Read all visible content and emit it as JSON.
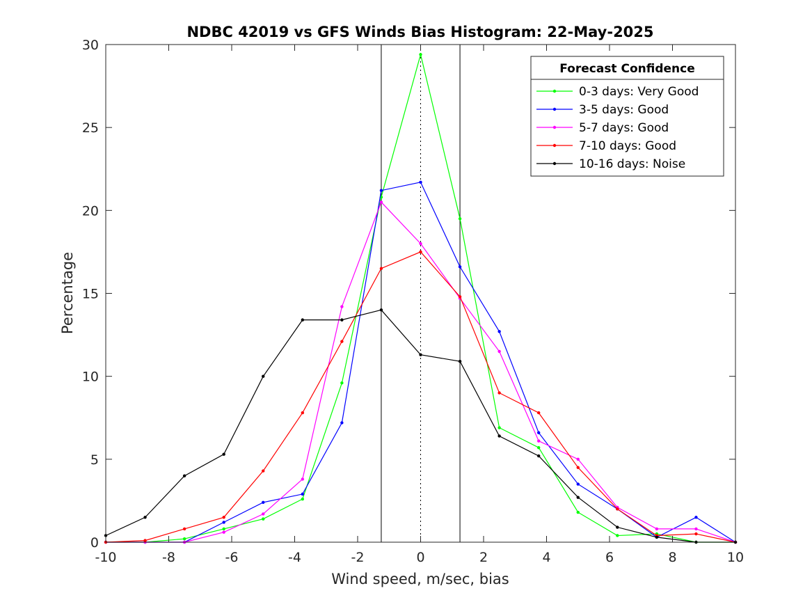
{
  "chart_data": {
    "type": "line",
    "title": "NDBC 42019 vs GFS Winds Bias Histogram: 22-May-2025",
    "xlabel": "Wind speed, m/sec, bias",
    "ylabel": "Percentage",
    "xlim": [
      -10,
      10
    ],
    "ylim": [
      0,
      30
    ],
    "xticks": [
      -10,
      -8,
      -6,
      -4,
      -2,
      0,
      2,
      4,
      6,
      8,
      10
    ],
    "yticks": [
      0,
      5,
      10,
      15,
      20,
      25,
      30
    ],
    "grid": false,
    "reference_lines": [
      {
        "x": -1.25,
        "style": "solid"
      },
      {
        "x": 0,
        "style": "dotted"
      },
      {
        "x": 1.25,
        "style": "solid"
      }
    ],
    "legend": {
      "title": "Forecast Confidence",
      "position": "top-right"
    },
    "x": [
      -10,
      -8.75,
      -7.5,
      -6.25,
      -5,
      -3.75,
      -2.5,
      -1.25,
      0,
      1.25,
      2.5,
      3.75,
      5,
      6.25,
      7.5,
      8.75,
      10
    ],
    "series": [
      {
        "name": "0-3 days: Very Good",
        "color": "#00ff00",
        "values": [
          0,
          0,
          0.2,
          0.8,
          1.4,
          2.6,
          9.6,
          20.8,
          29.4,
          19.5,
          6.9,
          5.7,
          1.8,
          0.4,
          0.5,
          0,
          0
        ]
      },
      {
        "name": "3-5 days: Good",
        "color": "#0000ff",
        "values": [
          0,
          0,
          0,
          1.2,
          2.4,
          2.9,
          7.2,
          21.2,
          21.7,
          16.6,
          12.7,
          6.6,
          3.5,
          2.0,
          0.3,
          1.5,
          0
        ]
      },
      {
        "name": "5-7 days: Good",
        "color": "#ff00ff",
        "values": [
          0,
          0,
          0,
          0.6,
          1.7,
          3.8,
          14.2,
          20.5,
          18.0,
          14.7,
          11.5,
          6.1,
          5.0,
          2.1,
          0.8,
          0.8,
          0
        ]
      },
      {
        "name": "7-10 days: Good",
        "color": "#ff0000",
        "values": [
          0,
          0.1,
          0.8,
          1.5,
          4.3,
          7.8,
          12.1,
          16.5,
          17.5,
          14.8,
          9.0,
          7.8,
          4.5,
          2.0,
          0.4,
          0.5,
          0
        ]
      },
      {
        "name": "10-16 days: Noise",
        "color": "#000000",
        "values": [
          0.4,
          1.5,
          4.0,
          5.3,
          10.0,
          13.4,
          13.4,
          14.0,
          11.3,
          10.9,
          6.4,
          5.2,
          2.7,
          0.9,
          0.3,
          0,
          0
        ]
      }
    ]
  }
}
